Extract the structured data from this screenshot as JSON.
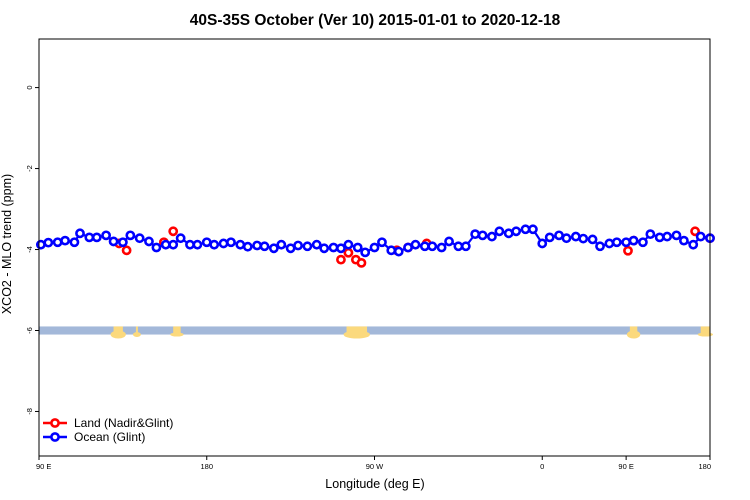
{
  "chart_data": {
    "type": "line",
    "title": "40S-35S October (Ver 10)   2015-01-01 to 2020-12-18",
    "xlabel": "Longitude (deg E)",
    "ylabel": "XCO2 - MLO trend (ppm)",
    "xlim": [
      90,
      450
    ],
    "ylim": [
      -9.1,
      1.2
    ],
    "x_ticks": [
      {
        "value": 90,
        "label": "90 E"
      },
      {
        "value": 180,
        "label": "180"
      },
      {
        "value": 270,
        "label": "90 W"
      },
      {
        "value": 360,
        "label": "0"
      },
      {
        "value": 450,
        "label": "180"
      }
    ],
    "x_ticks_extra": [
      {
        "value": 450,
        "label": "90 E"
      }
    ],
    "y_ticks": [
      {
        "value": 0,
        "label": "0"
      },
      {
        "value": -2,
        "label": "-2"
      },
      {
        "value": -4,
        "label": "-4"
      },
      {
        "value": -6,
        "label": "-6"
      },
      {
        "value": -8,
        "label": "-8"
      }
    ],
    "grid": false,
    "legend_position": "bottom-left",
    "series": [
      {
        "name": "Land (Nadir&Glint)",
        "color": "#ff0000",
        "x": [
          133,
          137,
          157,
          162,
          252,
          256,
          260,
          263,
          282,
          288,
          298,
          406,
          409,
          442,
          450
        ],
        "y": [
          -3.85,
          -4.02,
          -3.82,
          -3.55,
          -4.25,
          -4.08,
          -4.25,
          -4.33,
          -4.02,
          -3.95,
          -3.85,
          -4.03,
          -3.78,
          -3.55,
          -3.72
        ]
      },
      {
        "name": "Ocean (Glint)",
        "color": "#0000ff",
        "x": [
          91,
          95,
          100,
          104,
          109,
          112,
          117,
          121,
          126,
          130,
          135,
          139,
          144,
          149,
          153,
          158,
          162,
          166,
          171,
          175,
          180,
          184,
          189,
          193,
          198,
          202,
          207,
          211,
          216,
          220,
          225,
          229,
          234,
          239,
          243,
          248,
          252,
          256,
          261,
          265,
          270,
          274,
          279,
          283,
          288,
          292,
          297,
          301,
          306,
          310,
          315,
          319,
          324,
          328,
          333,
          337,
          342,
          346,
          351,
          355,
          360,
          364,
          369,
          373,
          378,
          382,
          387,
          391,
          396,
          400,
          405,
          409,
          414,
          418,
          423,
          427,
          432,
          436,
          441,
          445,
          450
        ],
        "y": [
          -3.88,
          -3.83,
          -3.82,
          -3.78,
          -3.82,
          -3.6,
          -3.7,
          -3.7,
          -3.65,
          -3.8,
          -3.82,
          -3.65,
          -3.72,
          -3.8,
          -3.95,
          -3.88,
          -3.88,
          -3.72,
          -3.88,
          -3.88,
          -3.82,
          -3.88,
          -3.85,
          -3.82,
          -3.88,
          -3.93,
          -3.9,
          -3.92,
          -3.97,
          -3.88,
          -3.97,
          -3.9,
          -3.92,
          -3.88,
          -3.97,
          -3.95,
          -3.97,
          -3.88,
          -3.95,
          -4.07,
          -3.95,
          -3.82,
          -4.02,
          -4.05,
          -3.95,
          -3.88,
          -3.92,
          -3.92,
          -3.95,
          -3.8,
          -3.92,
          -3.92,
          -3.62,
          -3.65,
          -3.68,
          -3.55,
          -3.6,
          -3.55,
          -3.5,
          -3.5,
          -3.85,
          -3.7,
          -3.65,
          -3.72,
          -3.68,
          -3.73,
          -3.75,
          -3.92,
          -3.85,
          -3.82,
          -3.82,
          -3.78,
          -3.82,
          -3.62,
          -3.7,
          -3.68,
          -3.65,
          -3.78,
          -3.88,
          -3.68,
          -3.72
        ]
      }
    ],
    "land_mask_band": {
      "y_top": -5.9,
      "y_bottom": -6.1,
      "ocean_color": "#a3b8d9",
      "land_color": "#fbd97d"
    }
  }
}
